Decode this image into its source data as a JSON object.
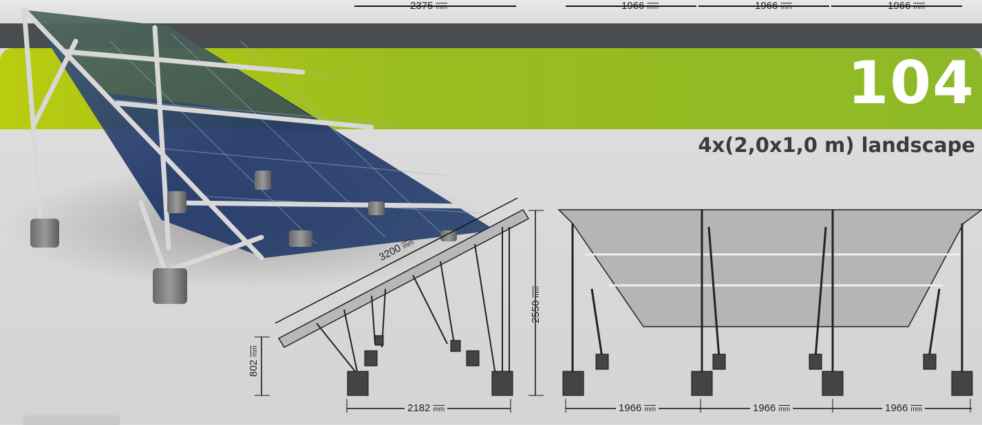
{
  "header": {
    "code": "104",
    "subtitle": "4x(2,0x1,0 m) landscape"
  },
  "top_dimensions": {
    "left": {
      "value": "2375",
      "unit": "mm"
    },
    "right": [
      {
        "value": "1966",
        "unit": "mm"
      },
      {
        "value": "1966",
        "unit": "mm"
      },
      {
        "value": "1966",
        "unit": "mm"
      }
    ]
  },
  "side_view": {
    "length": {
      "value": "3200",
      "unit": "mm"
    },
    "height": {
      "value": "2550",
      "unit": "mm"
    },
    "low_height": {
      "value": "802",
      "unit": "mm"
    },
    "depth": {
      "value": "2182",
      "unit": "mm"
    }
  },
  "front_view": {
    "spans": [
      {
        "value": "1966",
        "unit": "mm"
      },
      {
        "value": "1966",
        "unit": "mm"
      },
      {
        "value": "1966",
        "unit": "mm"
      }
    ]
  },
  "colors": {
    "accent_green": "#9cbd1e",
    "dark_band": "#4a4d4f",
    "panel_blue": "#1f3566"
  }
}
